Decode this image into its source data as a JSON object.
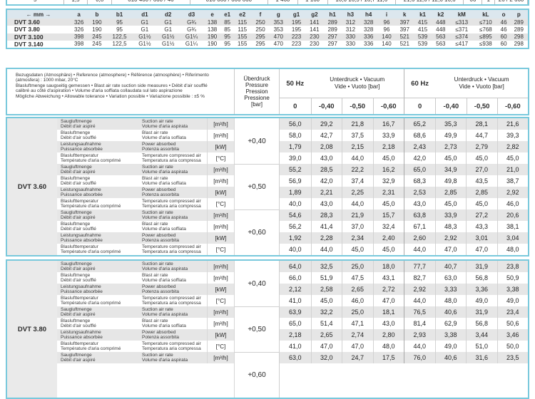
{
  "colors": {
    "accent_border": "#79c9dc",
    "row_stripe": "#e6e6e6",
    "dims_header_bg": "#dce7ee"
  },
  "top_clipped_row": {
    "note": "bottom edge of previous table, mostly cut off at top of screenshot",
    "fragments": [
      "5",
      "1,5",
      "0,8",
      "610 460 / 660 / 46",
      "616 660 / 666 660",
      "1 460",
      "1 160",
      "16,6 16,5 / 16,7 11,6",
      "21,6 11,6 / 12,6 16,6",
      "66",
      "1",
      "26 / 2 660"
    ]
  },
  "dimensions_table": {
    "unit_header": "← mm →",
    "columns": [
      "a",
      "b",
      "b1",
      "d1",
      "d2",
      "d3",
      "e",
      "e1",
      "e2",
      "f",
      "g",
      "g1",
      "g2",
      "h1",
      "h3",
      "h4",
      "i",
      "k",
      "k1",
      "k2",
      "kM",
      "kL",
      "o",
      "p"
    ],
    "rows": [
      {
        "model": "DVT 3.60",
        "values": [
          "326",
          "190",
          "95",
          "G1",
          "G1",
          "G¾",
          "138",
          "85",
          "115",
          "250",
          "353",
          "195",
          "141",
          "289",
          "312",
          "328",
          "96",
          "397",
          "415",
          "448",
          "≤313",
          "≤710",
          "46",
          "289"
        ]
      },
      {
        "model": "DVT 3.80",
        "values": [
          "326",
          "190",
          "95",
          "G1",
          "G1",
          "G¾",
          "138",
          "85",
          "115",
          "250",
          "353",
          "195",
          "141",
          "289",
          "312",
          "328",
          "96",
          "397",
          "415",
          "448",
          "≤371",
          "≤768",
          "46",
          "289"
        ]
      },
      {
        "model": "DVT 3.100",
        "values": [
          "398",
          "245",
          "122,5",
          "G1½",
          "G1½",
          "G1¼",
          "190",
          "95",
          "155",
          "295",
          "470",
          "223",
          "230",
          "297",
          "330",
          "336",
          "140",
          "521",
          "539",
          "563",
          "≤374",
          "≤895",
          "60",
          "298"
        ]
      },
      {
        "model": "DVT 3.140",
        "values": [
          "398",
          "245",
          "122,5",
          "G1½",
          "G1½",
          "G1¼",
          "190",
          "95",
          "155",
          "295",
          "470",
          "223",
          "230",
          "297",
          "330",
          "336",
          "140",
          "521",
          "539",
          "563",
          "≤417",
          "≤938",
          "60",
          "298"
        ]
      }
    ]
  },
  "performance_header": {
    "reference_lines": [
      "Bezugsdaten (Atmosphäre) • Reference (atmosphere) • Référence (atmosphère) • Riferimento",
      "(atmosfera) :  1000 mbar, 20°C",
      "Blasluftmenge saugseitig gemessen • Blast air rate suction side measures • Débit d'air soufflé",
      "calibré au côté d'aspiration • Volume d'aria soffiata collaudata sul lato aspirazione",
      "Mögliche Abweichung • Allowable tolerance • Variation possible • Variazione possibile :  ±5 %"
    ],
    "pressure_col_lines": [
      "Überdruck",
      "Pressure",
      "Pression",
      "Pressione",
      "[bar]"
    ],
    "freq_groups": [
      {
        "freq": "50 Hz",
        "vacuum_line1": "Unterdruck • Vacuum",
        "vacuum_line2": "Vide • Vuoto   [bar]",
        "columns": [
          "0",
          "-0,40",
          "-0,50",
          "-0,60"
        ]
      },
      {
        "freq": "60 Hz",
        "vacuum_line1": "Unterdruck • Vacuum",
        "vacuum_line2": "Vide • Vuoto   [bar]",
        "columns": [
          "0",
          "-0,40",
          "-0,50",
          "-0,60"
        ]
      }
    ]
  },
  "row_labels": [
    {
      "de": "Saugluftmenge",
      "fr": "Débit d'air aspiré",
      "en": "Suction air rate",
      "it": "Volume d'aria aspirata",
      "unit": "[m³/h]"
    },
    {
      "de": "Blasluftmenge",
      "fr": "Débit d'air soufflé",
      "en": "Blast air rate",
      "it": "Volume d'aria soffiata",
      "unit": "[m³/h]"
    },
    {
      "de": "Leistungsaufnahme",
      "fr": "Puissance absorbée",
      "en": "Power absorbed",
      "it": "Potenza assorbita",
      "unit": "[kW]"
    },
    {
      "de": "Blaslufttemperatur",
      "fr": "Température d'aria comprimé",
      "en": "Temperature compressed air",
      "it": "Temperatura aria compressa",
      "unit": "[°C]"
    }
  ],
  "models": [
    {
      "name": "DVT 3.60",
      "groups": [
        {
          "pressure": "+0,40",
          "rows": [
            [
              "56,0",
              "29,2",
              "21,8",
              "16,7",
              "65,2",
              "35,3",
              "28,1",
              "21,6"
            ],
            [
              "58,0",
              "42,7",
              "37,5",
              "33,9",
              "68,6",
              "49,9",
              "44,7",
              "39,3"
            ],
            [
              "1,79",
              "2,08",
              "2,15",
              "2,18",
              "2,43",
              "2,73",
              "2,79",
              "2,82"
            ],
            [
              "39,0",
              "43,0",
              "44,0",
              "45,0",
              "42,0",
              "45,0",
              "45,0",
              "45,0"
            ]
          ]
        },
        {
          "pressure": "+0,50",
          "rows": [
            [
              "55,2",
              "28,5",
              "22,2",
              "16,2",
              "65,0",
              "34,9",
              "27,0",
              "21,0"
            ],
            [
              "56,9",
              "42,0",
              "37,4",
              "32,9",
              "68,3",
              "49,8",
              "43,5",
              "38,7"
            ],
            [
              "1,89",
              "2,21",
              "2,25",
              "2,31",
              "2,53",
              "2,85",
              "2,85",
              "2,92"
            ],
            [
              "40,0",
              "43,0",
              "44,0",
              "45,0",
              "43,0",
              "45,0",
              "45,0",
              "46,0"
            ]
          ]
        },
        {
          "pressure": "+0,60",
          "rows": [
            [
              "54,6",
              "28,3",
              "21,9",
              "15,7",
              "63,8",
              "33,9",
              "27,2",
              "20,6"
            ],
            [
              "56,2",
              "41,4",
              "37,0",
              "32,4",
              "67,1",
              "48,3",
              "43,3",
              "38,1"
            ],
            [
              "1,92",
              "2,28",
              "2,34",
              "2,40",
              "2,60",
              "2,92",
              "3,01",
              "3,04"
            ],
            [
              "40,0",
              "44,0",
              "45,0",
              "45,0",
              "44,0",
              "47,0",
              "47,0",
              "48,0"
            ]
          ]
        }
      ]
    },
    {
      "name": "DVT 3.80",
      "groups": [
        {
          "pressure": "+0,40",
          "rows": [
            [
              "64,0",
              "32,5",
              "25,0",
              "18,0",
              "77,7",
              "40,7",
              "31,9",
              "23,8"
            ],
            [
              "66,0",
              "51,9",
              "47,5",
              "43,1",
              "82,7",
              "63,0",
              "56,8",
              "50,9"
            ],
            [
              "2,12",
              "2,58",
              "2,65",
              "2,72",
              "2,92",
              "3,33",
              "3,36",
              "3,38"
            ],
            [
              "41,0",
              "45,0",
              "46,0",
              "47,0",
              "44,0",
              "48,0",
              "49,0",
              "49,0"
            ]
          ]
        },
        {
          "pressure": "+0,50",
          "rows": [
            [
              "63,9",
              "32,2",
              "25,0",
              "18,1",
              "76,5",
              "40,6",
              "31,9",
              "23,4"
            ],
            [
              "65,0",
              "51,4",
              "47,1",
              "43,0",
              "81,4",
              "62,9",
              "56,8",
              "50,6"
            ],
            [
              "2,18",
              "2,65",
              "2,74",
              "2,80",
              "2,93",
              "3,38",
              "3,44",
              "3,46"
            ],
            [
              "41,0",
              "47,0",
              "47,0",
              "48,0",
              "44,0",
              "49,0",
              "51,0",
              "50,0"
            ]
          ]
        },
        {
          "pressure": "+0,60",
          "rows": [
            [
              "63,0",
              "32,0",
              "24,7",
              "17,5",
              "76,0",
              "40,6",
              "31,6",
              "23,5"
            ]
          ]
        }
      ]
    }
  ]
}
